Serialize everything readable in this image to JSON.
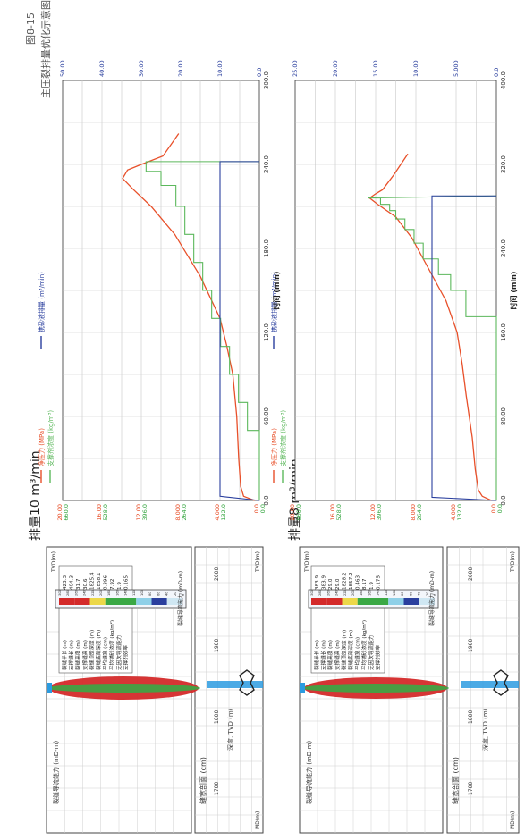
{
  "caption": {
    "number": "图8-15",
    "text": "主压裂排量优化示意图"
  },
  "cases": [
    {
      "title": "排量8 m³/min",
      "fracture_panel": {
        "title": "缝宽剖面 (cm)",
        "axis_label": "深度, TVD (m)",
        "md_label": "MD(m)",
        "tvd_label": "TVD(m)",
        "width_ticks": [
          "-2",
          "-1",
          "0",
          "1",
          "2"
        ],
        "depth_ticks": [
          "1700",
          "1800",
          "1900",
          "2000"
        ]
      },
      "conductivity_panel": {
        "title": "裂缝导流能力 (mD-m)",
        "tvd_label": "TVD(m)",
        "x_ticks": [
          "100",
          "200",
          "300",
          "400"
        ],
        "depth_ticks": [
          "1700",
          "1800",
          "1900"
        ],
        "colorbar_title": "裂缝导流能力 (mD-m)",
        "colorbar_ticks": [
          "0",
          "20",
          "40",
          "60",
          "80",
          "100",
          "120",
          "140",
          "160",
          "180",
          "200",
          "220",
          "240",
          "260",
          "280",
          "300"
        ],
        "stats": [
          {
            "label": "裂缝半长 (m)",
            "value": "383.9"
          },
          {
            "label": "支撑缝长 (m)",
            "value": "383.9"
          },
          {
            "label": "裂缝高度 (m)",
            "value": "29.0"
          },
          {
            "label": "支撑缝高 (m)",
            "value": "29.0"
          },
          {
            "label": "裂缝顶部深度 (m)",
            "value": "1828.2"
          },
          {
            "label": "裂缝底部深度 (m)",
            "value": "1857.2"
          },
          {
            "label": "平均缝宽 (cm)",
            "value": "0.463"
          },
          {
            "label": "平均铺砂浓度 (kg/m²)",
            "value": "8.17"
          },
          {
            "label": "无因次导流能力",
            "value": "1.9"
          },
          {
            "label": "支撑剂效率",
            "value": "0.175"
          }
        ]
      },
      "chart": {
        "legend": [
          "净压力 (MPa)",
          "支撑剂浓度 (kg/m³)",
          "携砂液排量 (m³/min)"
        ],
        "xlabel": "时间 (min)",
        "x_ticks": [
          "0.0",
          "80.00",
          "160.0",
          "240.0",
          "320.0",
          "400.0"
        ],
        "left_ticks_a": [
          "0.0",
          "4.000",
          "8.000",
          "12.00",
          "16.00",
          "20.00"
        ],
        "left_ticks_b": [
          "0.0",
          "132.0",
          "264.0",
          "396.0",
          "528.0",
          "660.0"
        ],
        "right_ticks": [
          "0.0",
          "5.000",
          "10.00",
          "15.00",
          "20.00",
          "25.00"
        ]
      }
    },
    {
      "title": "排量10 m³/min",
      "fracture_panel": {
        "title": "缝宽剖面 (cm)",
        "axis_label": "深度, TVD (m)",
        "md_label": "MD(m)",
        "tvd_label": "TVD(m)",
        "width_ticks": [
          "-2",
          "-1",
          "0",
          "1",
          "2"
        ],
        "depth_ticks": [
          "1700",
          "1800",
          "1900",
          "2000"
        ]
      },
      "conductivity_panel": {
        "title": "裂缝导流能力 (mD-m)",
        "tvd_label": "TVD(m)",
        "x_ticks": [
          "100",
          "200",
          "300",
          "400"
        ],
        "depth_ticks": [
          "1700",
          "1800",
          "1900"
        ],
        "colorbar_title": "裂缝导流能力 (mD-m)",
        "colorbar_ticks": [
          "0",
          "20",
          "40",
          "60",
          "80",
          "100",
          "120",
          "140",
          "160",
          "180",
          "200",
          "220",
          "240",
          "260",
          "280",
          "300"
        ],
        "stats": [
          {
            "label": "裂缝半长 (m)",
            "value": "423.3"
          },
          {
            "label": "支撑缝长 (m)",
            "value": "404.3"
          },
          {
            "label": "裂缝高度 (m)",
            "value": "31.7"
          },
          {
            "label": "支撑缝高 (m)",
            "value": "30.6"
          },
          {
            "label": "裂缝顶部深度 (m)",
            "value": "1825.4"
          },
          {
            "label": "裂缝底部深度 (m)",
            "value": "1858.1"
          },
          {
            "label": "平均缝宽 (cm)",
            "value": "0.396"
          },
          {
            "label": "平均铺砂浓度 (kg/m²)",
            "value": "7.92"
          },
          {
            "label": "无因次导流能力",
            "value": "1.9"
          },
          {
            "label": "支撑剂效率",
            "value": "0.165"
          }
        ]
      },
      "chart": {
        "legend": [
          "净压力 (MPa)",
          "支撑剂浓度 (kg/m³)",
          "携砂液排量 (m³/min)"
        ],
        "xlabel": "时间 (min)",
        "x_ticks": [
          "0.0",
          "60.00",
          "120.0",
          "180.0",
          "240.0",
          "300.0"
        ],
        "left_ticks_a": [
          "0.0",
          "4.000",
          "8.000",
          "12.00",
          "16.00",
          "20.00"
        ],
        "left_ticks_b": [
          "0.0",
          "132.0",
          "264.0",
          "396.0",
          "528.0",
          "660.0"
        ],
        "right_ticks": [
          "0.0",
          "10.00",
          "20.00",
          "30.00",
          "40.00",
          "50.00"
        ]
      }
    }
  ],
  "chart_data": [
    {
      "type": "line",
      "x_range": [
        0,
        400
      ],
      "xlabel": "时间 (min)",
      "ylabel_left": "",
      "ylim_left": [
        0,
        20
      ],
      "ylim_left_secondary": [
        0,
        660
      ],
      "ylim_right": [
        0,
        25
      ],
      "grid": true,
      "legend_position": "top",
      "colors": {
        "pressure": "#e8502a",
        "concentration": "#5cb85c",
        "rate": "#2a3f9e"
      },
      "series": [
        {
          "name": "净压力 (MPa)",
          "axis": "left",
          "x": [
            0,
            4,
            10,
            30,
            60,
            80,
            100,
            130,
            160,
            190,
            220,
            250,
            270,
            282,
            288,
            292,
            296,
            310,
            330
          ],
          "y": [
            0.5,
            1.4,
            1.8,
            2.1,
            2.4,
            2.7,
            3.0,
            3.4,
            3.9,
            5.0,
            6.7,
            8.4,
            10.0,
            11.8,
            12.6,
            12.0,
            11.3,
            10.2,
            8.8
          ]
        },
        {
          "name": "支撑剂浓度 (kg/m³)",
          "axis": "left_secondary",
          "x": [
            0,
            175,
            175,
            200,
            200,
            215,
            215,
            230,
            230,
            245,
            245,
            258,
            258,
            268,
            268,
            276,
            276,
            282,
            282,
            288,
            288,
            290
          ],
          "y": [
            0,
            0,
            100,
            100,
            150,
            150,
            190,
            190,
            240,
            240,
            270,
            270,
            300,
            300,
            330,
            330,
            350,
            350,
            380,
            380,
            420,
            0
          ]
        },
        {
          "name": "携砂液排量 (m³/min)",
          "axis": "right",
          "x": [
            0,
            3,
            290,
            290
          ],
          "y": [
            0,
            8,
            8,
            0
          ]
        }
      ]
    },
    {
      "type": "line",
      "x_range": [
        0,
        300
      ],
      "xlabel": "时间 (min)",
      "ylabel_left": "",
      "ylim_left": [
        0,
        20
      ],
      "ylim_left_secondary": [
        0,
        660
      ],
      "ylim_right": [
        0,
        50
      ],
      "grid": true,
      "legend_position": "top",
      "colors": {
        "pressure": "#e8502a",
        "concentration": "#5cb85c",
        "rate": "#2a3f9e"
      },
      "series": [
        {
          "name": "净压力 (MPa)",
          "axis": "left",
          "x": [
            0,
            3,
            10,
            30,
            60,
            90,
            110,
            130,
            160,
            190,
            210,
            222,
            230,
            236,
            240,
            246,
            262
          ],
          "y": [
            0.5,
            1.6,
            1.9,
            2.1,
            2.3,
            2.7,
            3.3,
            4.0,
            6.0,
            8.6,
            11.0,
            12.8,
            13.9,
            13.4,
            12.0,
            9.8,
            8.2
          ]
        },
        {
          "name": "支撑剂浓度 (kg/m³)",
          "axis": "left_secondary",
          "x": [
            0,
            50,
            50,
            70,
            70,
            90,
            90,
            110,
            110,
            130,
            130,
            150,
            150,
            170,
            170,
            190,
            190,
            210,
            210,
            225,
            225,
            235,
            235,
            242,
            242
          ],
          "y": [
            0,
            0,
            40,
            40,
            70,
            70,
            100,
            100,
            130,
            130,
            160,
            160,
            190,
            190,
            220,
            220,
            250,
            250,
            280,
            280,
            330,
            330,
            380,
            380,
            0
          ]
        },
        {
          "name": "携砂液排量 (m³/min)",
          "axis": "right",
          "x": [
            0,
            3,
            242,
            242
          ],
          "y": [
            0,
            10,
            10,
            0
          ]
        }
      ]
    }
  ]
}
